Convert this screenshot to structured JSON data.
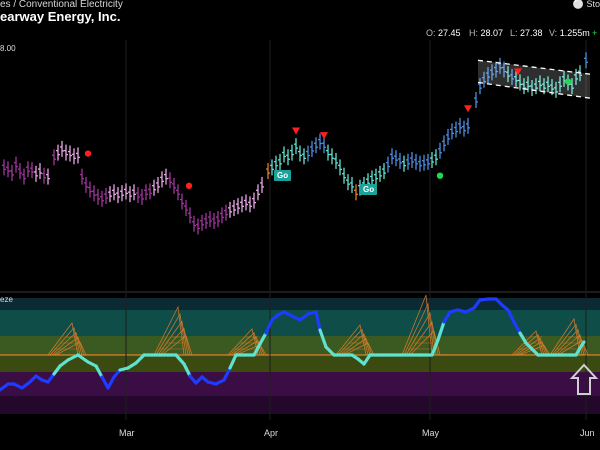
{
  "header": {
    "category": "es / Conventional Electricity",
    "title": "earway Energy, Inc.",
    "brand": "Sto",
    "price_label": "8.00",
    "indicator_label": "eze"
  },
  "ohlc": {
    "open_key": "O:",
    "open": "27.45",
    "high_key": "H:",
    "high": "28.07",
    "low_key": "L:",
    "low": "27.38",
    "vol_key": "V:",
    "volume": "1.255m",
    "change": "+"
  },
  "signals": {
    "go_label": "Go"
  },
  "colors": {
    "purple": "#a1349c",
    "light_purple": "#e8a7e4",
    "aqua": "#5fe2d0",
    "blue": "#4b8ee0",
    "orange": "#e47f2a",
    "red": "#ff1f1f",
    "green": "#1fdb4a"
  },
  "chart_data": {
    "type": "candlestick",
    "price_range": [
      25.6,
      28.2
    ],
    "xaxis_labels": [
      "Mar",
      "Apr",
      "May",
      "Jun"
    ],
    "bars": [
      {
        "x": 4,
        "y": 26.82,
        "c": "purple"
      },
      {
        "x": 8,
        "y": 26.8,
        "c": "purple"
      },
      {
        "x": 12,
        "y": 26.76,
        "c": "purple"
      },
      {
        "x": 16,
        "y": 26.85,
        "c": "purple"
      },
      {
        "x": 20,
        "y": 26.78,
        "c": "purple"
      },
      {
        "x": 24,
        "y": 26.72,
        "c": "purple"
      },
      {
        "x": 28,
        "y": 26.8,
        "c": "purple"
      },
      {
        "x": 32,
        "y": 26.79,
        "c": "purple"
      },
      {
        "x": 36,
        "y": 26.75,
        "c": "light_purple"
      },
      {
        "x": 40,
        "y": 26.78,
        "c": "light_purple"
      },
      {
        "x": 44,
        "y": 26.73,
        "c": "purple"
      },
      {
        "x": 48,
        "y": 26.72,
        "c": "light_purple"
      },
      {
        "x": 54,
        "y": 26.93,
        "c": "purple"
      },
      {
        "x": 58,
        "y": 26.98,
        "c": "light_purple"
      },
      {
        "x": 62,
        "y": 27.02,
        "c": "light_purple"
      },
      {
        "x": 66,
        "y": 26.98,
        "c": "light_purple"
      },
      {
        "x": 70,
        "y": 26.97,
        "c": "light_purple"
      },
      {
        "x": 74,
        "y": 26.94,
        "c": "light_purple"
      },
      {
        "x": 78,
        "y": 26.95,
        "c": "light_purple"
      },
      {
        "x": 82,
        "y": 26.72,
        "c": "purple"
      },
      {
        "x": 86,
        "y": 26.63,
        "c": "purple"
      },
      {
        "x": 90,
        "y": 26.58,
        "c": "purple"
      },
      {
        "x": 94,
        "y": 26.54,
        "c": "purple"
      },
      {
        "x": 98,
        "y": 26.5,
        "c": "purple"
      },
      {
        "x": 102,
        "y": 26.48,
        "c": "purple"
      },
      {
        "x": 106,
        "y": 26.51,
        "c": "purple"
      },
      {
        "x": 110,
        "y": 26.53,
        "c": "light_purple"
      },
      {
        "x": 114,
        "y": 26.55,
        "c": "light_purple"
      },
      {
        "x": 118,
        "y": 26.52,
        "c": "light_purple"
      },
      {
        "x": 122,
        "y": 26.54,
        "c": "light_purple"
      },
      {
        "x": 126,
        "y": 26.56,
        "c": "light_purple"
      },
      {
        "x": 130,
        "y": 26.53,
        "c": "light_purple"
      },
      {
        "x": 134,
        "y": 26.55,
        "c": "light_purple"
      },
      {
        "x": 138,
        "y": 26.52,
        "c": "purple"
      },
      {
        "x": 142,
        "y": 26.5,
        "c": "purple"
      },
      {
        "x": 146,
        "y": 26.55,
        "c": "purple"
      },
      {
        "x": 150,
        "y": 26.56,
        "c": "purple"
      },
      {
        "x": 154,
        "y": 26.6,
        "c": "light_purple"
      },
      {
        "x": 158,
        "y": 26.63,
        "c": "light_purple"
      },
      {
        "x": 162,
        "y": 26.69,
        "c": "light_purple"
      },
      {
        "x": 166,
        "y": 26.72,
        "c": "light_purple"
      },
      {
        "x": 170,
        "y": 26.68,
        "c": "purple"
      },
      {
        "x": 174,
        "y": 26.62,
        "c": "purple"
      },
      {
        "x": 178,
        "y": 26.55,
        "c": "purple"
      },
      {
        "x": 182,
        "y": 26.45,
        "c": "purple"
      },
      {
        "x": 186,
        "y": 26.38,
        "c": "purple"
      },
      {
        "x": 190,
        "y": 26.3,
        "c": "purple"
      },
      {
        "x": 194,
        "y": 26.21,
        "c": "purple"
      },
      {
        "x": 198,
        "y": 26.18,
        "c": "purple"
      },
      {
        "x": 202,
        "y": 26.22,
        "c": "purple"
      },
      {
        "x": 206,
        "y": 26.24,
        "c": "purple"
      },
      {
        "x": 210,
        "y": 26.26,
        "c": "purple"
      },
      {
        "x": 214,
        "y": 26.24,
        "c": "purple"
      },
      {
        "x": 218,
        "y": 26.26,
        "c": "purple"
      },
      {
        "x": 222,
        "y": 26.3,
        "c": "purple"
      },
      {
        "x": 226,
        "y": 26.33,
        "c": "purple"
      },
      {
        "x": 230,
        "y": 26.36,
        "c": "light_purple"
      },
      {
        "x": 234,
        "y": 26.38,
        "c": "light_purple"
      },
      {
        "x": 238,
        "y": 26.4,
        "c": "light_purple"
      },
      {
        "x": 242,
        "y": 26.42,
        "c": "light_purple"
      },
      {
        "x": 246,
        "y": 26.44,
        "c": "light_purple"
      },
      {
        "x": 250,
        "y": 26.42,
        "c": "light_purple"
      },
      {
        "x": 254,
        "y": 26.46,
        "c": "light_purple"
      },
      {
        "x": 258,
        "y": 26.55,
        "c": "light_purple"
      },
      {
        "x": 262,
        "y": 26.63,
        "c": "light_purple"
      },
      {
        "x": 268,
        "y": 26.78,
        "c": "orange"
      },
      {
        "x": 272,
        "y": 26.82,
        "c": "aqua"
      },
      {
        "x": 276,
        "y": 26.86,
        "c": "aqua"
      },
      {
        "x": 280,
        "y": 26.88,
        "c": "aqua"
      },
      {
        "x": 284,
        "y": 26.96,
        "c": "aqua"
      },
      {
        "x": 288,
        "y": 26.93,
        "c": "aqua"
      },
      {
        "x": 292,
        "y": 26.98,
        "c": "aqua"
      },
      {
        "x": 296,
        "y": 27.05,
        "c": "aqua"
      },
      {
        "x": 300,
        "y": 26.97,
        "c": "aqua"
      },
      {
        "x": 304,
        "y": 26.94,
        "c": "aqua"
      },
      {
        "x": 308,
        "y": 26.97,
        "c": "blue"
      },
      {
        "x": 312,
        "y": 27.02,
        "c": "blue"
      },
      {
        "x": 316,
        "y": 27.06,
        "c": "blue"
      },
      {
        "x": 320,
        "y": 27.1,
        "c": "blue"
      },
      {
        "x": 324,
        "y": 27.06,
        "c": "blue"
      },
      {
        "x": 328,
        "y": 26.98,
        "c": "aqua"
      },
      {
        "x": 332,
        "y": 26.94,
        "c": "aqua"
      },
      {
        "x": 336,
        "y": 26.89,
        "c": "aqua"
      },
      {
        "x": 340,
        "y": 26.82,
        "c": "aqua"
      },
      {
        "x": 344,
        "y": 26.73,
        "c": "aqua"
      },
      {
        "x": 348,
        "y": 26.66,
        "c": "aqua"
      },
      {
        "x": 352,
        "y": 26.63,
        "c": "aqua"
      },
      {
        "x": 356,
        "y": 26.55,
        "c": "orange"
      },
      {
        "x": 360,
        "y": 26.6,
        "c": "aqua"
      },
      {
        "x": 364,
        "y": 26.63,
        "c": "aqua"
      },
      {
        "x": 368,
        "y": 26.67,
        "c": "aqua"
      },
      {
        "x": 372,
        "y": 26.7,
        "c": "aqua"
      },
      {
        "x": 376,
        "y": 26.72,
        "c": "aqua"
      },
      {
        "x": 380,
        "y": 26.75,
        "c": "aqua"
      },
      {
        "x": 384,
        "y": 26.78,
        "c": "aqua"
      },
      {
        "x": 388,
        "y": 26.85,
        "c": "blue"
      },
      {
        "x": 392,
        "y": 26.94,
        "c": "blue"
      },
      {
        "x": 396,
        "y": 26.92,
        "c": "blue"
      },
      {
        "x": 400,
        "y": 26.89,
        "c": "blue"
      },
      {
        "x": 404,
        "y": 26.86,
        "c": "aqua"
      },
      {
        "x": 408,
        "y": 26.88,
        "c": "blue"
      },
      {
        "x": 412,
        "y": 26.9,
        "c": "blue"
      },
      {
        "x": 416,
        "y": 26.88,
        "c": "blue"
      },
      {
        "x": 420,
        "y": 26.86,
        "c": "blue"
      },
      {
        "x": 424,
        "y": 26.87,
        "c": "blue"
      },
      {
        "x": 428,
        "y": 26.88,
        "c": "blue"
      },
      {
        "x": 432,
        "y": 26.9,
        "c": "aqua"
      },
      {
        "x": 436,
        "y": 26.93,
        "c": "aqua"
      },
      {
        "x": 440,
        "y": 27.0,
        "c": "blue"
      },
      {
        "x": 444,
        "y": 27.08,
        "c": "blue"
      },
      {
        "x": 448,
        "y": 27.15,
        "c": "blue"
      },
      {
        "x": 452,
        "y": 27.21,
        "c": "blue"
      },
      {
        "x": 456,
        "y": 27.23,
        "c": "blue"
      },
      {
        "x": 460,
        "y": 27.27,
        "c": "blue"
      },
      {
        "x": 464,
        "y": 27.24,
        "c": "blue"
      },
      {
        "x": 468,
        "y": 27.27,
        "c": "blue"
      },
      {
        "x": 476,
        "y": 27.55,
        "c": "blue"
      },
      {
        "x": 480,
        "y": 27.7,
        "c": "blue"
      },
      {
        "x": 484,
        "y": 27.77,
        "c": "blue"
      },
      {
        "x": 488,
        "y": 27.82,
        "c": "blue"
      },
      {
        "x": 492,
        "y": 27.85,
        "c": "blue"
      },
      {
        "x": 496,
        "y": 27.88,
        "c": "blue"
      },
      {
        "x": 500,
        "y": 27.92,
        "c": "blue"
      },
      {
        "x": 504,
        "y": 27.88,
        "c": "blue"
      },
      {
        "x": 508,
        "y": 27.83,
        "c": "aqua"
      },
      {
        "x": 512,
        "y": 27.8,
        "c": "blue"
      },
      {
        "x": 516,
        "y": 27.78,
        "c": "aqua"
      },
      {
        "x": 520,
        "y": 27.74,
        "c": "aqua"
      },
      {
        "x": 524,
        "y": 27.7,
        "c": "aqua"
      },
      {
        "x": 528,
        "y": 27.72,
        "c": "aqua"
      },
      {
        "x": 532,
        "y": 27.68,
        "c": "aqua"
      },
      {
        "x": 536,
        "y": 27.7,
        "c": "aqua"
      },
      {
        "x": 540,
        "y": 27.73,
        "c": "aqua"
      },
      {
        "x": 544,
        "y": 27.7,
        "c": "aqua"
      },
      {
        "x": 548,
        "y": 27.72,
        "c": "aqua"
      },
      {
        "x": 552,
        "y": 27.69,
        "c": "aqua"
      },
      {
        "x": 556,
        "y": 27.66,
        "c": "aqua"
      },
      {
        "x": 560,
        "y": 27.72,
        "c": "aqua"
      },
      {
        "x": 564,
        "y": 27.78,
        "c": "aqua"
      },
      {
        "x": 568,
        "y": 27.74,
        "c": "aqua"
      },
      {
        "x": 572,
        "y": 27.7,
        "c": "aqua"
      },
      {
        "x": 576,
        "y": 27.8,
        "c": "aqua"
      },
      {
        "x": 580,
        "y": 27.84,
        "c": "aqua"
      },
      {
        "x": 586,
        "y": 27.98,
        "c": "blue"
      }
    ],
    "markers": [
      {
        "type": "dot",
        "x": 88,
        "y": 26.97,
        "c": "red"
      },
      {
        "type": "dot",
        "x": 189,
        "y": 26.62,
        "c": "red"
      },
      {
        "type": "tri",
        "x": 296,
        "y": 27.22,
        "c": "red"
      },
      {
        "type": "tri",
        "x": 324,
        "y": 27.17,
        "c": "red"
      },
      {
        "type": "tri",
        "x": 468,
        "y": 27.46,
        "c": "red"
      },
      {
        "type": "tri",
        "x": 518,
        "y": 27.86,
        "c": "red"
      },
      {
        "type": "dot",
        "x": 440,
        "y": 26.73,
        "c": "green"
      },
      {
        "type": "dot",
        "x": 568,
        "y": 27.75,
        "c": "green"
      }
    ],
    "go_signals": [
      {
        "x": 282,
        "y": 26.73
      },
      {
        "x": 368,
        "y": 26.58
      }
    ],
    "channel": {
      "top": [
        [
          478,
          27.98
        ],
        [
          590,
          27.83
        ]
      ],
      "bottom": [
        [
          478,
          27.74
        ],
        [
          590,
          27.57
        ]
      ]
    },
    "indicator": {
      "line_points": [
        [
          0,
          390
        ],
        [
          8,
          384
        ],
        [
          14,
          384
        ],
        [
          22,
          388
        ],
        [
          30,
          382
        ],
        [
          36,
          376
        ],
        [
          42,
          380
        ],
        [
          48,
          382
        ],
        [
          54,
          374
        ],
        [
          60,
          366
        ],
        [
          68,
          360
        ],
        [
          78,
          355
        ],
        [
          88,
          362
        ],
        [
          96,
          366
        ],
        [
          102,
          377
        ],
        [
          108,
          388
        ],
        [
          114,
          377
        ],
        [
          120,
          370
        ],
        [
          128,
          368
        ],
        [
          136,
          363
        ],
        [
          144,
          355
        ],
        [
          152,
          355
        ],
        [
          160,
          355
        ],
        [
          168,
          355
        ],
        [
          176,
          355
        ],
        [
          184,
          364
        ],
        [
          190,
          376
        ],
        [
          196,
          383
        ],
        [
          202,
          377
        ],
        [
          208,
          382
        ],
        [
          216,
          384
        ],
        [
          224,
          380
        ],
        [
          230,
          368
        ],
        [
          236,
          355
        ],
        [
          244,
          355
        ],
        [
          254,
          355
        ],
        [
          260,
          344
        ],
        [
          266,
          333
        ],
        [
          272,
          320
        ],
        [
          278,
          315
        ],
        [
          284,
          312
        ],
        [
          292,
          316
        ],
        [
          300,
          320
        ],
        [
          308,
          314
        ],
        [
          316,
          312
        ],
        [
          320,
          330
        ],
        [
          326,
          347
        ],
        [
          334,
          355
        ],
        [
          344,
          355
        ],
        [
          352,
          355
        ],
        [
          358,
          359
        ],
        [
          364,
          364
        ],
        [
          370,
          355
        ],
        [
          378,
          355
        ],
        [
          390,
          355
        ],
        [
          400,
          355
        ],
        [
          410,
          355
        ],
        [
          420,
          355
        ],
        [
          432,
          355
        ],
        [
          438,
          340
        ],
        [
          444,
          322
        ],
        [
          450,
          312
        ],
        [
          458,
          310
        ],
        [
          466,
          312
        ],
        [
          474,
          308
        ],
        [
          480,
          300
        ],
        [
          488,
          299
        ],
        [
          496,
          299
        ],
        [
          502,
          305
        ],
        [
          508,
          310
        ],
        [
          514,
          322
        ],
        [
          520,
          333
        ],
        [
          526,
          343
        ],
        [
          532,
          349
        ],
        [
          538,
          355
        ],
        [
          546,
          355
        ],
        [
          554,
          355
        ],
        [
          562,
          355
        ],
        [
          570,
          355
        ],
        [
          576,
          355
        ],
        [
          580,
          348
        ],
        [
          584,
          342
        ]
      ],
      "squeeze_peaks": [
        {
          "x": 72,
          "h": 32
        },
        {
          "x": 178,
          "h": 48
        },
        {
          "x": 252,
          "h": 26
        },
        {
          "x": 360,
          "h": 30
        },
        {
          "x": 426,
          "h": 60
        },
        {
          "x": 536,
          "h": 24
        },
        {
          "x": 574,
          "h": 36
        }
      ]
    }
  }
}
